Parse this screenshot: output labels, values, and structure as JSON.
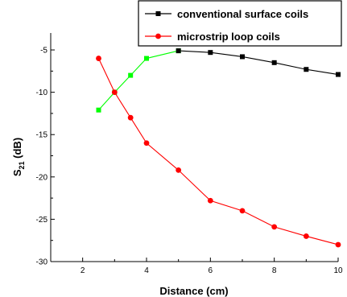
{
  "chart_data": {
    "type": "line",
    "xlabel": "Distance (cm)",
    "ylabel_main": "S",
    "ylabel_sub": "21",
    "ylabel_unit": " (dB)",
    "xlim": [
      1,
      10
    ],
    "ylim": [
      -30,
      -3
    ],
    "x_ticks": [
      2,
      4,
      6,
      8,
      10
    ],
    "x_minor_ticks": [
      1,
      3,
      5,
      7,
      9
    ],
    "y_ticks": [
      -30,
      -25,
      -20,
      -15,
      -10,
      -5
    ],
    "legend_position": "top-right",
    "series": [
      {
        "name": "conventional surface coils",
        "marker": "square",
        "segments": [
          {
            "color": "#00ff00",
            "x": [
              2.5,
              3,
              3.5,
              4,
              5
            ],
            "y": [
              -12.1,
              -10.0,
              -8.0,
              -6.0,
              -5.1
            ]
          },
          {
            "color": "#000000",
            "x": [
              5,
              6,
              7,
              8,
              9,
              10
            ],
            "y": [
              -5.1,
              -5.3,
              -5.8,
              -6.5,
              -7.3,
              -7.9
            ]
          }
        ]
      },
      {
        "name": "microstrip loop coils",
        "marker": "circle",
        "color": "#ff0000",
        "segments": [
          {
            "color": "#ff0000",
            "x": [
              2.5,
              3,
              3.5,
              4,
              5,
              6,
              7,
              8,
              9,
              10
            ],
            "y": [
              -6.0,
              -10.0,
              -13.0,
              -16.0,
              -19.2,
              -22.8,
              -24.0,
              -25.9,
              -27.0,
              -28.0
            ]
          }
        ]
      }
    ],
    "legend_colors": [
      "#000000",
      "#ff0000"
    ]
  }
}
